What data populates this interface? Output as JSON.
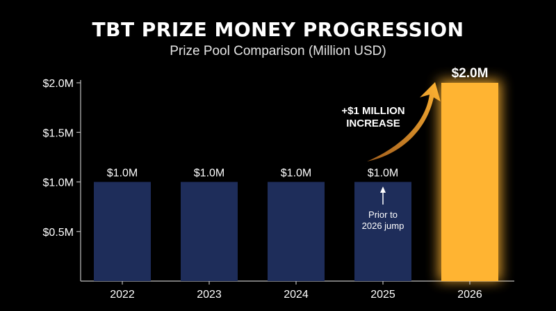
{
  "title": "TBT PRIZE MONEY PROGRESSION",
  "subtitle": "Prize Pool Comparison (Million USD)",
  "colors": {
    "background": "#000000",
    "bar": "#1e2d5a",
    "highlight_bar": "#ffb432",
    "text": "#ffffff",
    "axis": "#bfbfbf"
  },
  "chart_data": {
    "type": "bar",
    "categories": [
      "2022",
      "2023",
      "2024",
      "2025",
      "2026"
    ],
    "values": [
      1.0,
      1.0,
      1.0,
      1.0,
      2.0
    ],
    "data_labels": [
      "$1.0M",
      "$1.0M",
      "$1.0M",
      "$1.0M",
      "$2.0M"
    ],
    "highlight_index": 4,
    "ylim": [
      0,
      2.0
    ],
    "yticks": [
      0.5,
      1.0,
      1.5,
      2.0
    ],
    "ytick_labels": [
      "$0.5M",
      "$1.0M",
      "$1.5M",
      "$2.0M"
    ],
    "grid": false,
    "annotations": [
      {
        "text_lines": [
          "+$1 MILLION",
          "INCREASE"
        ],
        "style": "curved-arrow",
        "target_index": 4
      },
      {
        "text_lines": [
          "Prior to",
          "2026 jump"
        ],
        "style": "up-arrow",
        "target_index": 3
      }
    ]
  }
}
